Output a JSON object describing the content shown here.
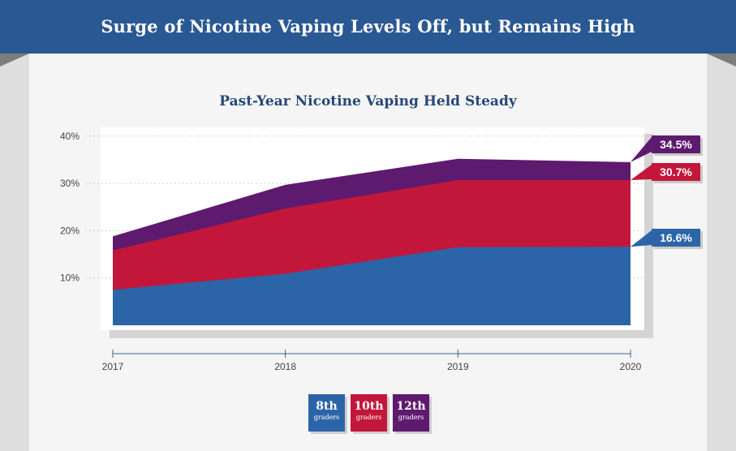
{
  "banner": {
    "title": "Surge of Nicotine Vaping Levels Off, but Remains High"
  },
  "chart_data": {
    "type": "area",
    "title": "Past-Year Nicotine Vaping Held Steady",
    "x": [
      "2017",
      "2018",
      "2019",
      "2020"
    ],
    "y_ticks": [
      "10%",
      "20%",
      "30%",
      "40%"
    ],
    "ylim": [
      0,
      40
    ],
    "stacked": true,
    "grid": true,
    "series": [
      {
        "name": "8th graders",
        "values": [
          7.5,
          10.9,
          16.5,
          16.6
        ],
        "color": "#2c64a8",
        "end_label": "16.6%"
      },
      {
        "name": "10th graders",
        "values": [
          15.8,
          24.7,
          30.7,
          30.7
        ],
        "color": "#c2173a",
        "end_label": "30.7%"
      },
      {
        "name": "12th graders",
        "values": [
          18.8,
          29.7,
          35.2,
          34.5
        ],
        "color": "#5e1a6e",
        "end_label": "34.5%"
      }
    ]
  },
  "legend": [
    {
      "main": "8th",
      "sub": "graders",
      "color": "#2c64a8"
    },
    {
      "main": "10th",
      "sub": "graders",
      "color": "#c2173a"
    },
    {
      "main": "12th",
      "sub": "graders",
      "color": "#5e1a6e"
    }
  ]
}
